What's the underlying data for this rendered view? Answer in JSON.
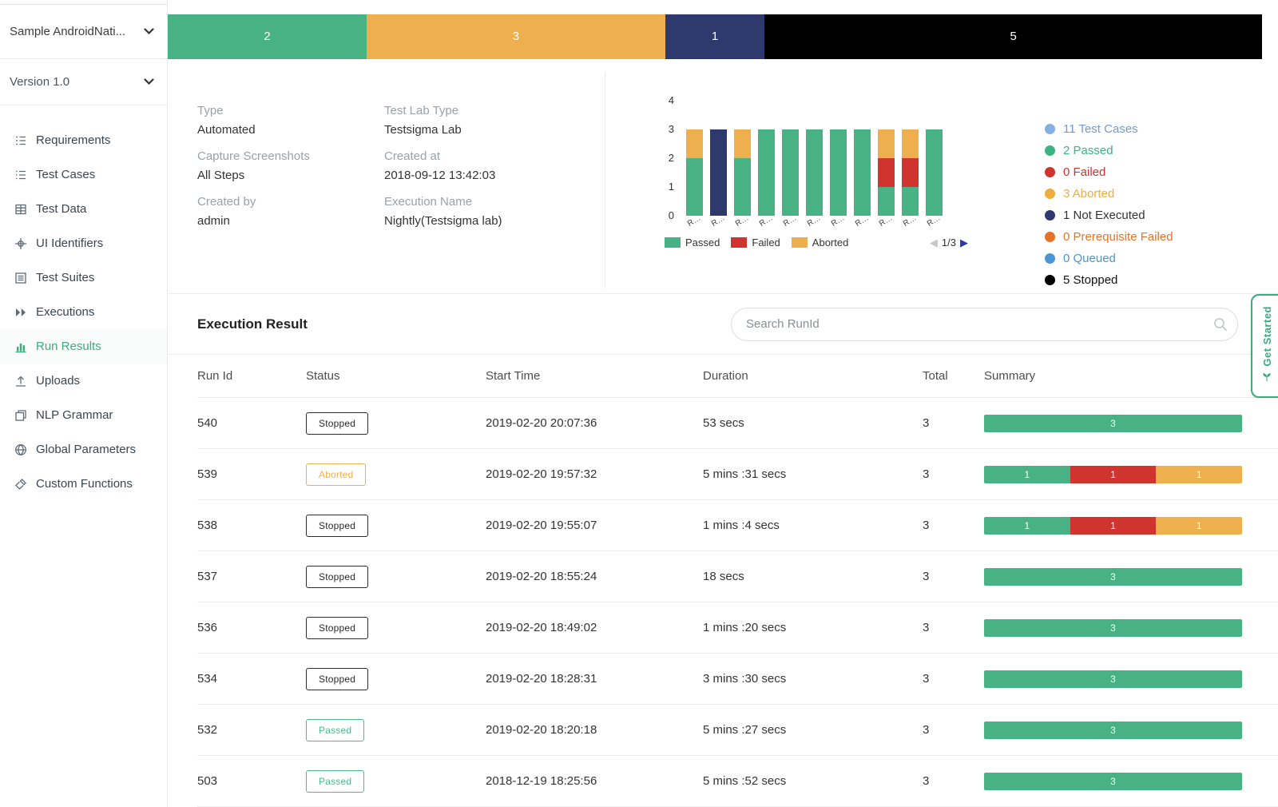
{
  "colors": {
    "passed": "#48b285",
    "failed": "#cf342e",
    "aborted": "#eeb04f",
    "not_executed": "#2e3a6e",
    "stopped": "#000000",
    "accent": "#3daa7d",
    "link_blue": "#6d9bd8"
  },
  "sidebar": {
    "project": "Sample AndroidNati...",
    "version": "Version 1.0",
    "items": [
      {
        "label": "Requirements",
        "icon": "requirements-icon",
        "active": false
      },
      {
        "label": "Test Cases",
        "icon": "test-cases-icon",
        "active": false
      },
      {
        "label": "Test Data",
        "icon": "test-data-icon",
        "active": false
      },
      {
        "label": "UI Identifiers",
        "icon": "ui-identifiers-icon",
        "active": false
      },
      {
        "label": "Test Suites",
        "icon": "test-suites-icon",
        "active": false
      },
      {
        "label": "Executions",
        "icon": "executions-icon",
        "active": false
      },
      {
        "label": "Run Results",
        "icon": "run-results-icon",
        "active": true
      },
      {
        "label": "Uploads",
        "icon": "uploads-icon",
        "active": false
      },
      {
        "label": "NLP Grammar",
        "icon": "nlp-grammar-icon",
        "active": false
      },
      {
        "label": "Global Parameters",
        "icon": "global-parameters-icon",
        "active": false
      },
      {
        "label": "Custom Functions",
        "icon": "custom-functions-icon",
        "active": false
      }
    ]
  },
  "summary_bar": {
    "segments": [
      {
        "name": "passed",
        "label": "2",
        "value": 2,
        "color": "#48b285"
      },
      {
        "name": "aborted",
        "label": "3",
        "value": 3,
        "color": "#eeb04f"
      },
      {
        "name": "not-executed",
        "label": "1",
        "value": 1,
        "color": "#2e3a6e"
      },
      {
        "name": "stopped",
        "label": "5",
        "value": 5,
        "color": "#000000"
      }
    ]
  },
  "details": [
    {
      "label": "Type",
      "value": "Automated"
    },
    {
      "label": "Test Lab Type",
      "value": "Testsigma Lab"
    },
    {
      "label": "Capture Screenshots",
      "value": "All Steps"
    },
    {
      "label": "Created at",
      "value": "2018-09-12 13:42:03"
    },
    {
      "label": "Created by",
      "value": "admin"
    },
    {
      "label": "Execution Name",
      "value": "Nightly(Testsigma lab)"
    }
  ],
  "chart_data": {
    "type": "bar",
    "stacked": true,
    "categories": [
      "R…",
      "R…",
      "R…",
      "R…",
      "R…",
      "R…",
      "R…",
      "R…",
      "R…",
      "R…",
      "R…"
    ],
    "series": [
      {
        "name": "Passed",
        "color": "#48b285",
        "values": [
          2,
          0,
          2,
          3,
          3,
          3,
          3,
          3,
          1,
          1,
          3
        ]
      },
      {
        "name": "Failed",
        "color": "#cf342e",
        "values": [
          0,
          0,
          0,
          0,
          0,
          0,
          0,
          0,
          1,
          1,
          0
        ]
      },
      {
        "name": "Aborted",
        "color": "#eeb04f",
        "values": [
          1,
          0,
          1,
          0,
          0,
          0,
          0,
          0,
          1,
          1,
          0
        ]
      },
      {
        "name": "Not Executed",
        "color": "#2e3a6e",
        "values": [
          0,
          3,
          0,
          0,
          0,
          0,
          0,
          0,
          0,
          0,
          0
        ]
      }
    ],
    "ylim": [
      0,
      4
    ],
    "yticks": [
      0,
      1,
      2,
      3,
      4
    ],
    "grid": false,
    "legend": [
      "Passed",
      "Failed",
      "Aborted"
    ],
    "legend_position": "bottom",
    "pagination": {
      "prev": "◀",
      "label": "1/3",
      "next": "▶"
    }
  },
  "side_legend": [
    {
      "label": "11 Test Cases",
      "text_color": "#6d9bd8",
      "dot_color": "#85aee3"
    },
    {
      "label": "2 Passed",
      "text_color": "#3cb381",
      "dot_color": "#3cb381"
    },
    {
      "label": "0 Failed",
      "text_color": "#d0342c",
      "dot_color": "#d0342c"
    },
    {
      "label": "3 Aborted",
      "text_color": "#efac3f",
      "dot_color": "#efac3f"
    },
    {
      "label": "1 Not Executed",
      "text_color": "#333333",
      "dot_color": "#2e3a6e"
    },
    {
      "label": "0 Prerequisite Failed",
      "text_color": "#e4732a",
      "dot_color": "#e4732a"
    },
    {
      "label": "0 Queued",
      "text_color": "#4a96d2",
      "dot_color": "#4a96d2"
    },
    {
      "label": "5 Stopped",
      "text_color": "#111111",
      "dot_color": "#000000"
    }
  ],
  "execution_result": {
    "title": "Execution Result",
    "search_placeholder": "Search RunId"
  },
  "table": {
    "columns": [
      "Run Id",
      "Status",
      "Start Time",
      "Duration",
      "Total",
      "Summary"
    ],
    "rows": [
      {
        "run_id": "540",
        "status": "Stopped",
        "status_type": "stopped",
        "start_time": "2019-02-20 20:07:36",
        "duration": "53 secs",
        "total": "3",
        "summary": [
          {
            "type": "passed",
            "label": "3",
            "value": 3
          }
        ]
      },
      {
        "run_id": "539",
        "status": "Aborted",
        "status_type": "aborted",
        "start_time": "2019-02-20 19:57:32",
        "duration": "5 mins :31 secs",
        "total": "3",
        "summary": [
          {
            "type": "passed",
            "label": "1",
            "value": 1
          },
          {
            "type": "failed",
            "label": "1",
            "value": 1
          },
          {
            "type": "aborted",
            "label": "1",
            "value": 1
          }
        ]
      },
      {
        "run_id": "538",
        "status": "Stopped",
        "status_type": "stopped",
        "start_time": "2019-02-20 19:55:07",
        "duration": "1 mins :4 secs",
        "total": "3",
        "summary": [
          {
            "type": "passed",
            "label": "1",
            "value": 1
          },
          {
            "type": "failed",
            "label": "1",
            "value": 1
          },
          {
            "type": "aborted",
            "label": "1",
            "value": 1
          }
        ]
      },
      {
        "run_id": "537",
        "status": "Stopped",
        "status_type": "stopped",
        "start_time": "2019-02-20 18:55:24",
        "duration": "18 secs",
        "total": "3",
        "summary": [
          {
            "type": "passed",
            "label": "3",
            "value": 3
          }
        ]
      },
      {
        "run_id": "536",
        "status": "Stopped",
        "status_type": "stopped",
        "start_time": "2019-02-20 18:49:02",
        "duration": "1 mins :20 secs",
        "total": "3",
        "summary": [
          {
            "type": "passed",
            "label": "3",
            "value": 3
          }
        ]
      },
      {
        "run_id": "534",
        "status": "Stopped",
        "status_type": "stopped",
        "start_time": "2019-02-20 18:28:31",
        "duration": "3 mins :30 secs",
        "total": "3",
        "summary": [
          {
            "type": "passed",
            "label": "3",
            "value": 3
          }
        ]
      },
      {
        "run_id": "532",
        "status": "Passed",
        "status_type": "passed",
        "start_time": "2019-02-20 18:20:18",
        "duration": "5 mins :27 secs",
        "total": "3",
        "summary": [
          {
            "type": "passed",
            "label": "3",
            "value": 3
          }
        ]
      },
      {
        "run_id": "503",
        "status": "Passed",
        "status_type": "passed",
        "start_time": "2018-12-19 18:25:56",
        "duration": "5 mins :52 secs",
        "total": "3",
        "summary": [
          {
            "type": "passed",
            "label": "3",
            "value": 3
          }
        ]
      }
    ]
  },
  "get_started": {
    "label": "Get Started"
  }
}
